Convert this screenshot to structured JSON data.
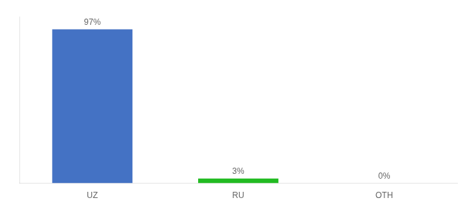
{
  "chart_data": {
    "type": "bar",
    "categories": [
      "UZ",
      "RU",
      "OTH"
    ],
    "values": [
      97,
      3,
      0
    ],
    "value_labels": [
      "97%",
      "3%",
      "0%"
    ],
    "data_labels": true,
    "colors": [
      "#4472C4",
      "#22BB22",
      "#4472C4"
    ],
    "ylim": [
      0,
      105
    ],
    "grid": false,
    "tick_labels": "x"
  }
}
